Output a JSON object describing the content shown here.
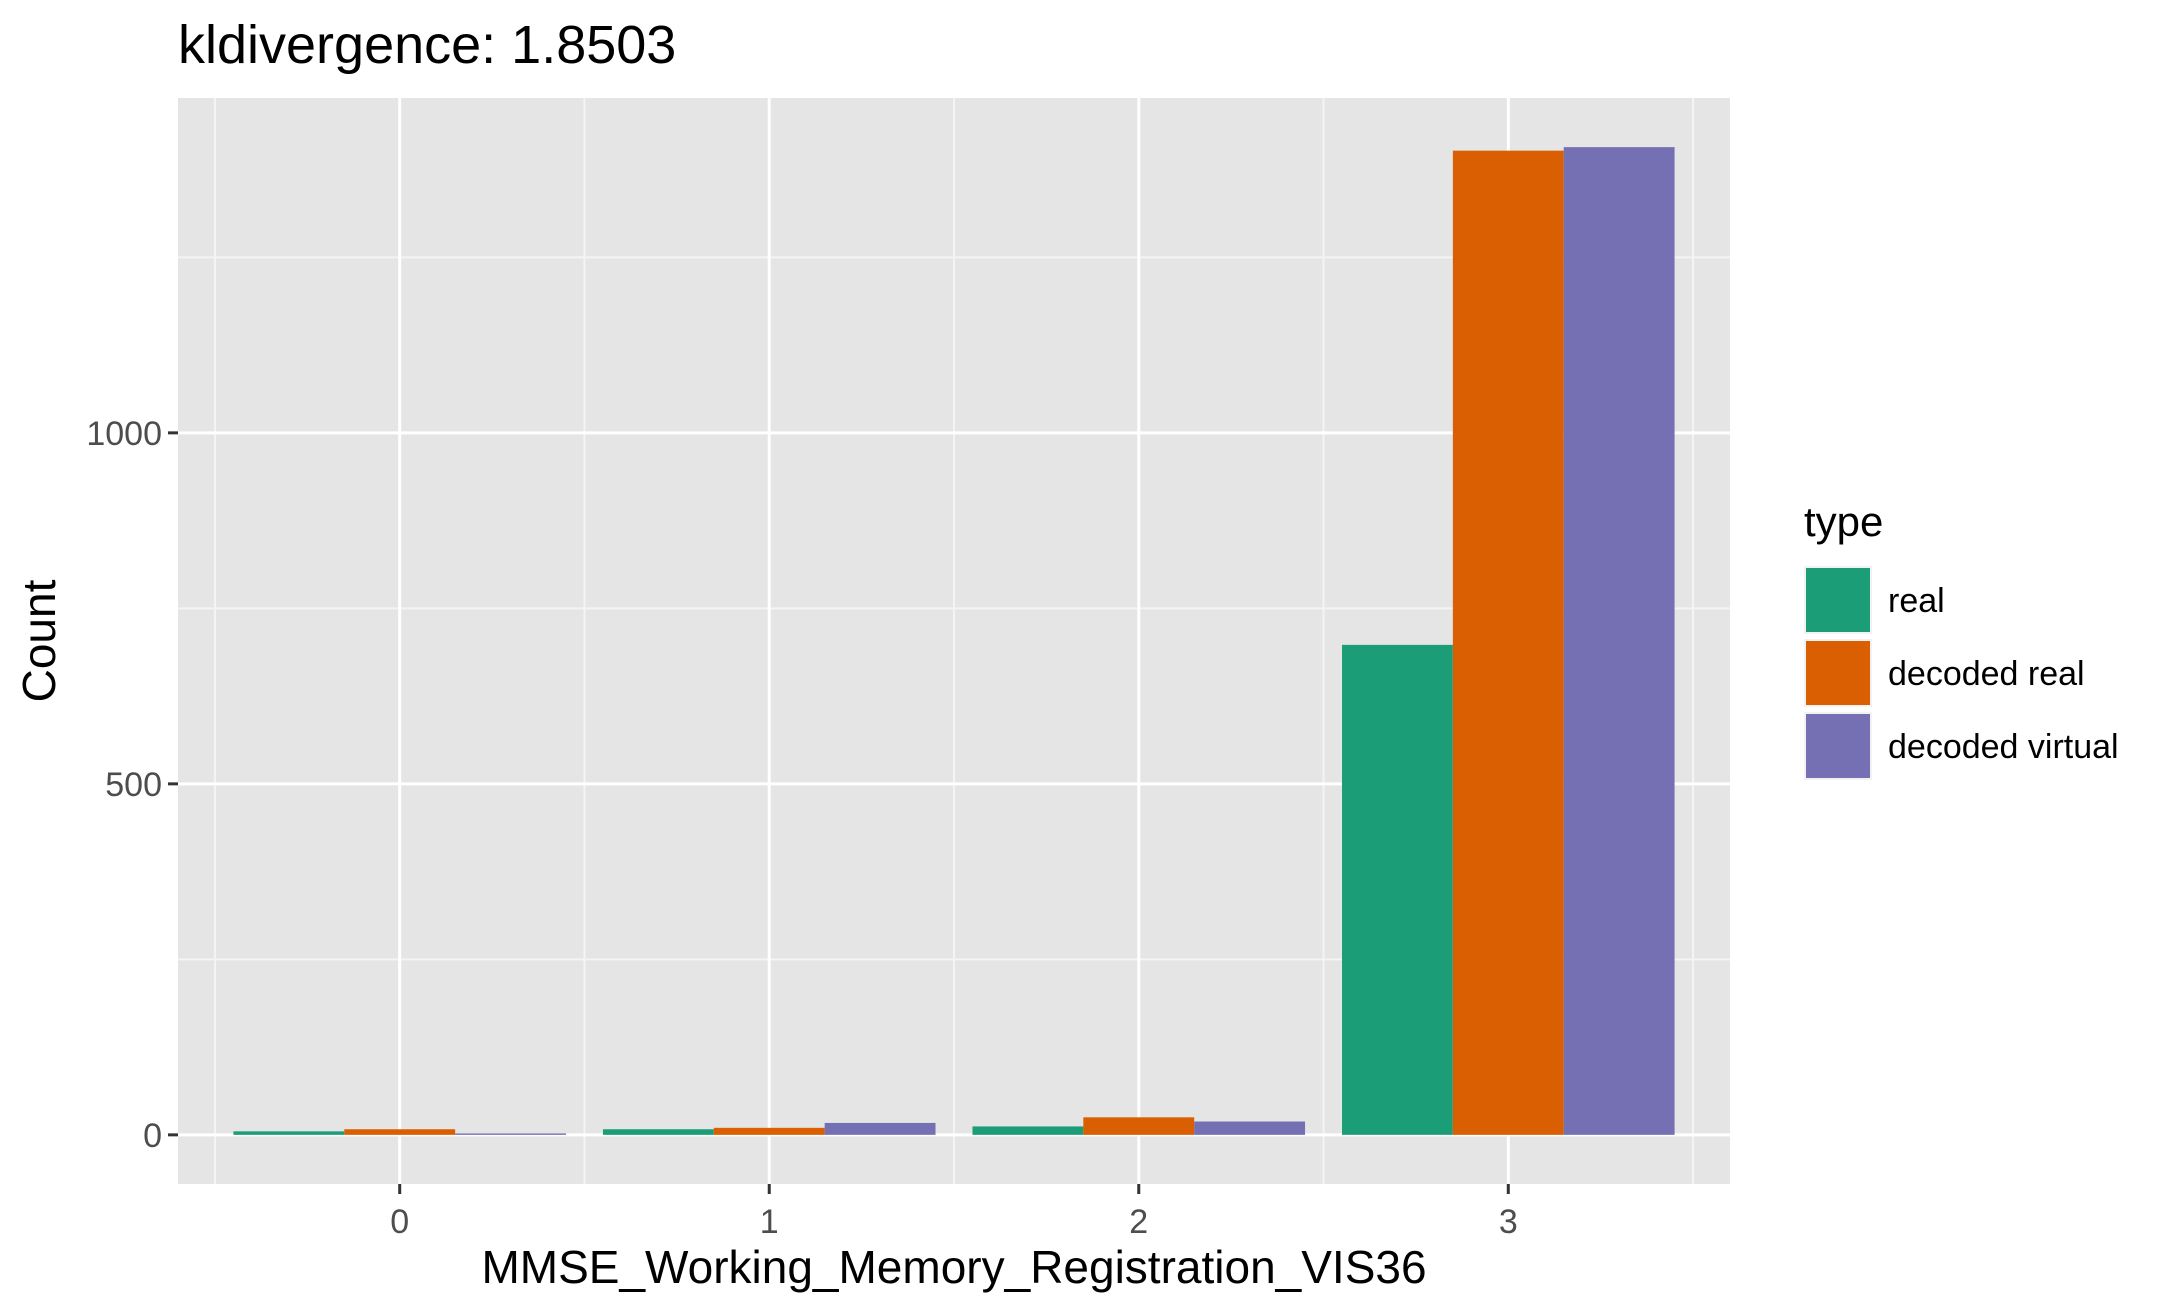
{
  "chart_data": {
    "type": "bar",
    "title": "kldivergence: 1.8503",
    "xlabel": "MMSE_Working_Memory_Registration_VIS36",
    "ylabel": "Count",
    "categories": [
      "0",
      "1",
      "2",
      "3"
    ],
    "series": [
      {
        "name": "real",
        "values": [
          5,
          8,
          12,
          698
        ],
        "color": "#1b9e77"
      },
      {
        "name": "decoded real",
        "values": [
          8,
          10,
          25,
          1402
        ],
        "color": "#d95f02"
      },
      {
        "name": "decoded virtual",
        "values": [
          2,
          17,
          19,
          1407
        ],
        "color": "#7570b3"
      }
    ],
    "y_ticks": [
      0,
      500,
      1000
    ],
    "y_tick_labels": [
      "0",
      "500",
      "1000"
    ],
    "ylim": [
      -70,
      1477
    ],
    "grid": true,
    "legend": {
      "title": "type",
      "position": "right"
    }
  }
}
